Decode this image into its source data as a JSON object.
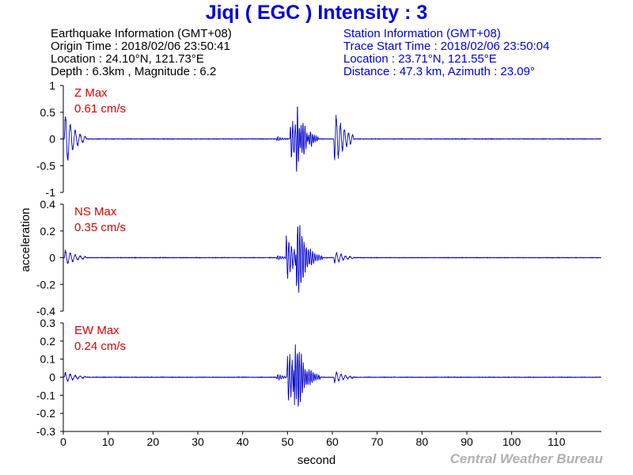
{
  "header": {
    "title": "Jiqi ( EGC ) Intensity : 3",
    "title_color": "#0000dd"
  },
  "earthquake_info": {
    "heading": "Earthquake Information  (GMT+08)",
    "origin_time": "Origin Time : 2018/02/06 23:50:41",
    "location": "Location : 24.10°N, 121.73°E",
    "depth_magnitude": "Depth : 6.3km , Magnitude : 6.2",
    "color": "#000000"
  },
  "station_info": {
    "heading": "Station Information  (GMT+08)",
    "trace_start": "Trace Start Time : 2018/02/06 23:50:04",
    "location": "Location : 23.71°N, 121.55°E",
    "distance_azimuth": "Distance : 47.3 km, Azimuth : 23.09°",
    "color": "#0000dd"
  },
  "footer": {
    "credit": "Central Weather Bureau",
    "credit_color": "#b0b0b0"
  },
  "chart_data": {
    "type": "line",
    "xlabel": "second",
    "ylabel": "acceleration",
    "xlim": [
      0,
      120
    ],
    "x_ticks": [
      0,
      10,
      20,
      30,
      40,
      50,
      60,
      70,
      80,
      90,
      100,
      110
    ],
    "trace_color": "#0000cc",
    "max_label_color": "#dd0000",
    "panels": [
      {
        "component": "Z",
        "max_label": "Z Max",
        "max_value": "0.61 cm/s",
        "ylim": [
          -1,
          1
        ],
        "y_ticks": [
          1,
          0.5,
          0,
          -0.5,
          -1
        ],
        "events": [
          {
            "t": 0.2,
            "amp": 0.6,
            "decay": 0.55,
            "freq": 0.9,
            "dur": 5
          },
          {
            "t": 47.5,
            "amp": 0.05,
            "decay": 0.9,
            "freq": 2.0,
            "dur": 3
          },
          {
            "t": 50.5,
            "amp": 0.4,
            "decay": 0.45,
            "freq": 1.8,
            "dur": 5
          },
          {
            "t": 51.8,
            "amp": 0.5,
            "decay": 0.5,
            "freq": 2.4,
            "dur": 5
          },
          {
            "t": 60.3,
            "amp": 0.58,
            "decay": 0.5,
            "freq": 1.1,
            "dur": 4.5
          }
        ]
      },
      {
        "component": "NS",
        "max_label": "NS Max",
        "max_value": "0.35 cm/s",
        "ylim": [
          -0.4,
          0.4
        ],
        "y_ticks": [
          0.4,
          0.2,
          0,
          -0.2,
          -0.4
        ],
        "events": [
          {
            "t": 0.2,
            "amp": 0.06,
            "decay": 0.45,
            "freq": 0.9,
            "dur": 5
          },
          {
            "t": 47.5,
            "amp": 0.02,
            "decay": 0.8,
            "freq": 2.0,
            "dur": 3
          },
          {
            "t": 49.5,
            "amp": 0.18,
            "decay": 0.55,
            "freq": 1.7,
            "dur": 6
          },
          {
            "t": 51.8,
            "amp": 0.34,
            "decay": 0.55,
            "freq": 2.1,
            "dur": 6
          },
          {
            "t": 60.3,
            "amp": 0.05,
            "decay": 0.5,
            "freq": 1.0,
            "dur": 4.5
          }
        ]
      },
      {
        "component": "EW",
        "max_label": "EW Max",
        "max_value": "0.24 cm/s",
        "ylim": [
          -0.3,
          0.3
        ],
        "y_ticks": [
          0.3,
          0.2,
          0.1,
          0,
          -0.1,
          -0.2,
          -0.3
        ],
        "events": [
          {
            "t": 0.2,
            "amp": 0.03,
            "decay": 0.45,
            "freq": 0.9,
            "dur": 5
          },
          {
            "t": 47.5,
            "amp": 0.02,
            "decay": 0.8,
            "freq": 2.0,
            "dur": 3
          },
          {
            "t": 49.8,
            "amp": 0.16,
            "decay": 0.55,
            "freq": 1.9,
            "dur": 6
          },
          {
            "t": 51.3,
            "amp": 0.24,
            "decay": 0.55,
            "freq": 2.3,
            "dur": 6
          },
          {
            "t": 60.3,
            "amp": 0.035,
            "decay": 0.5,
            "freq": 1.0,
            "dur": 4.5
          }
        ]
      }
    ]
  }
}
